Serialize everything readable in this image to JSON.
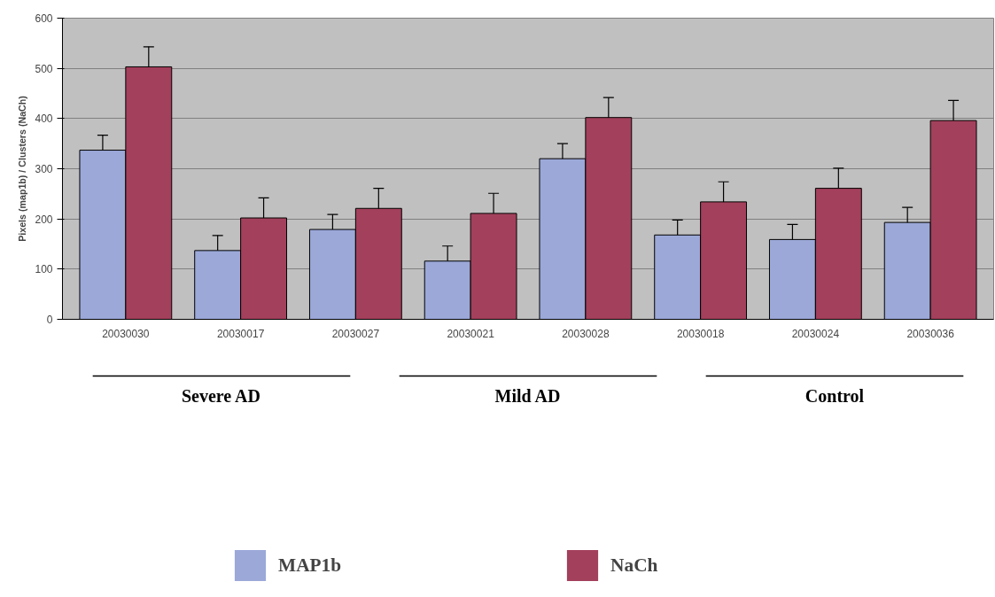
{
  "chart_data": {
    "type": "bar",
    "ylabel": "Pixels (map1b) / Clusters (NaCh)",
    "categories": [
      "20030030",
      "20030017",
      "20030027",
      "20030021",
      "20030028",
      "20030018",
      "20030024",
      "20030036"
    ],
    "series": [
      {
        "name": "MAP1b",
        "color": "#9ba8d8",
        "values": [
          337,
          137,
          179,
          116,
          320,
          168,
          159,
          193
        ],
        "errors": [
          30,
          30,
          30,
          30,
          30,
          30,
          30,
          30
        ]
      },
      {
        "name": "NaCh",
        "color": "#a3405c",
        "values": [
          503,
          202,
          221,
          211,
          402,
          234,
          261,
          396
        ],
        "errors": [
          40,
          40,
          40,
          40,
          40,
          40,
          40,
          40
        ]
      }
    ],
    "ylim": [
      0,
      600
    ],
    "yticks": [
      0,
      100,
      200,
      300,
      400,
      500,
      600
    ],
    "grid": "y",
    "legend": "bottom",
    "annotations": [
      "Severe AD",
      "Mild AD",
      "Control"
    ]
  }
}
